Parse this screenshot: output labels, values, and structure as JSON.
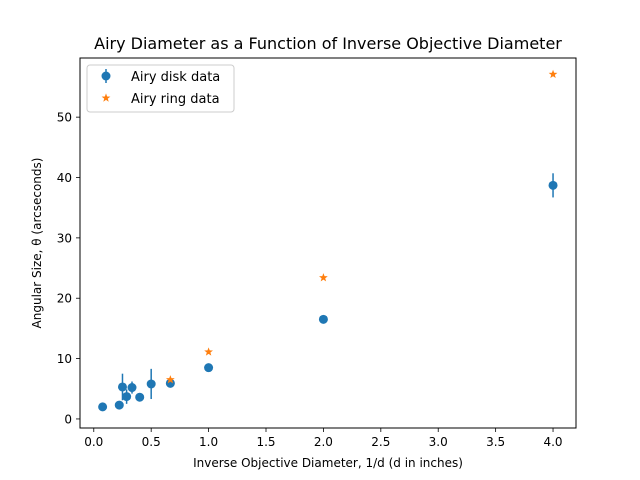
{
  "chart_data": {
    "type": "scatter",
    "title": "Airy Diameter as a Function of Inverse Objective Diameter",
    "xlabel": "Inverse Objective Diameter, 1/d (d in inches)",
    "ylabel": "Angular Size, θ (arcseconds)",
    "xlim": [
      -0.12,
      4.2
    ],
    "ylim": [
      -1.5,
      59.8
    ],
    "xticks": [
      0.0,
      0.5,
      1.0,
      1.5,
      2.0,
      2.5,
      3.0,
      3.5,
      4.0
    ],
    "xtick_labels": [
      "0.0",
      "0.5",
      "1.0",
      "1.5",
      "2.0",
      "2.5",
      "3.0",
      "3.5",
      "4.0"
    ],
    "yticks": [
      0,
      10,
      20,
      30,
      40,
      50
    ],
    "ytick_labels": [
      "0",
      "10",
      "20",
      "30",
      "40",
      "50"
    ],
    "grid": false,
    "legend_position": "top-left",
    "series": [
      {
        "name": "Airy disk data",
        "marker": "circle",
        "color": "#1f77b4",
        "points": [
          {
            "x": 0.077,
            "y": 2.0,
            "err": 0.5
          },
          {
            "x": 0.222,
            "y": 2.3,
            "err": 0.3
          },
          {
            "x": 0.25,
            "y": 5.3,
            "err": 2.2
          },
          {
            "x": 0.286,
            "y": 3.7,
            "err": 1.2
          },
          {
            "x": 0.333,
            "y": 5.2,
            "err": 1.0
          },
          {
            "x": 0.4,
            "y": 3.6,
            "err": 0.3
          },
          {
            "x": 0.5,
            "y": 5.8,
            "err": 2.5
          },
          {
            "x": 0.667,
            "y": 5.9,
            "err": 0.5
          },
          {
            "x": 1.0,
            "y": 8.5,
            "err": 0.4
          },
          {
            "x": 2.0,
            "y": 16.5,
            "err": 0.6
          },
          {
            "x": 4.0,
            "y": 38.7,
            "err": 2.0
          }
        ]
      },
      {
        "name": "Airy ring data",
        "marker": "star",
        "color": "#ff7f0e",
        "points": [
          {
            "x": 0.667,
            "y": 6.5
          },
          {
            "x": 1.0,
            "y": 11.1
          },
          {
            "x": 2.0,
            "y": 23.4
          },
          {
            "x": 4.0,
            "y": 57.1
          }
        ]
      }
    ]
  }
}
